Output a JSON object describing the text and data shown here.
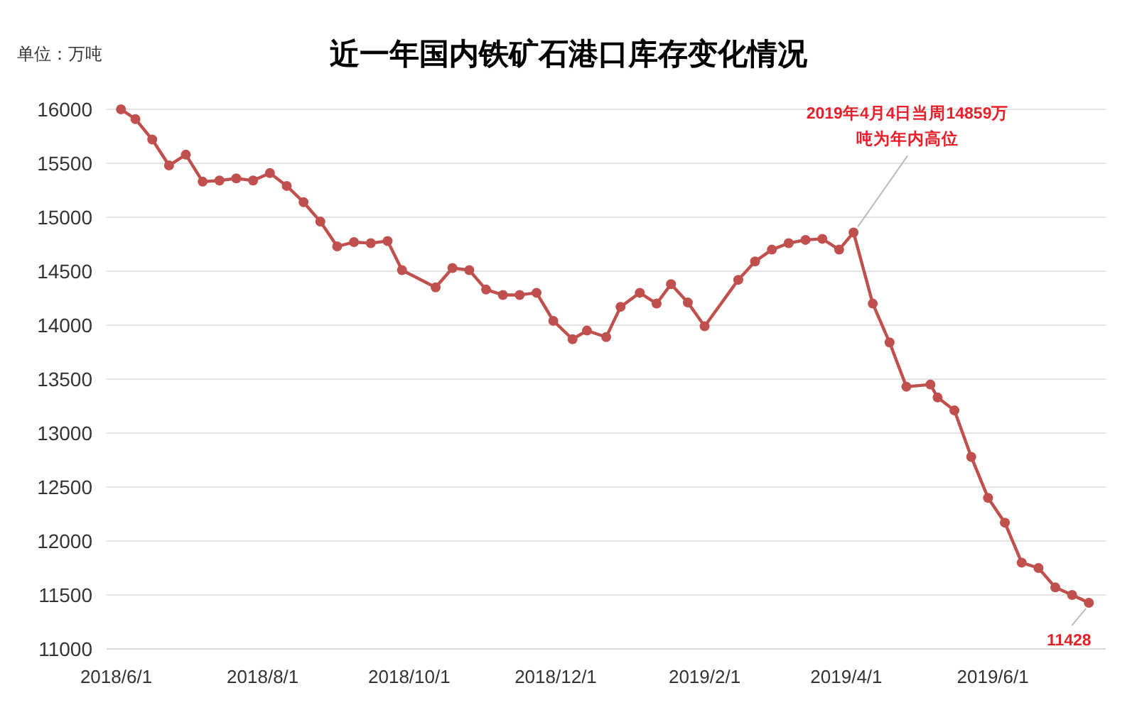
{
  "chart_data": {
    "type": "line",
    "title": "近一年国内铁矿石港口库存变化情况",
    "ylabel": "单位：万吨",
    "x": [
      "2018-06-03",
      "2018-06-09",
      "2018-06-16",
      "2018-06-23",
      "2018-06-30",
      "2018-07-07",
      "2018-07-14",
      "2018-07-21",
      "2018-07-28",
      "2018-08-04",
      "2018-08-11",
      "2018-08-18",
      "2018-08-25",
      "2018-09-01",
      "2018-09-08",
      "2018-09-15",
      "2018-09-22",
      "2018-09-28",
      "2018-10-12",
      "2018-10-19",
      "2018-10-26",
      "2018-11-02",
      "2018-11-09",
      "2018-11-16",
      "2018-11-23",
      "2018-11-30",
      "2018-12-08",
      "2018-12-14",
      "2018-12-22",
      "2018-12-28",
      "2019-01-05",
      "2019-01-12",
      "2019-01-18",
      "2019-01-25",
      "2019-02-01",
      "2019-02-15",
      "2019-02-22",
      "2019-03-01",
      "2019-03-08",
      "2019-03-15",
      "2019-03-22",
      "2019-03-29",
      "2019-04-04",
      "2019-04-12",
      "2019-04-19",
      "2019-04-26",
      "2019-05-06",
      "2019-05-09",
      "2019-05-16",
      "2019-05-23",
      "2019-05-30",
      "2019-06-06",
      "2019-06-13",
      "2019-06-20",
      "2019-06-27",
      "2019-07-04",
      "2019-07-11"
    ],
    "series": [
      {
        "color": "#c0504d",
        "values": [
          16000,
          15910,
          15720,
          15480,
          15580,
          15330,
          15340,
          15360,
          15340,
          15410,
          15290,
          15140,
          14960,
          14730,
          14770,
          14760,
          14780,
          14510,
          14350,
          14530,
          14510,
          14330,
          14280,
          14280,
          14300,
          14040,
          13870,
          13950,
          13890,
          14170,
          14300,
          14200,
          14380,
          14210,
          13990,
          14420,
          14590,
          14700,
          14760,
          14790,
          14800,
          14700,
          14859,
          14200,
          13840,
          13430,
          13450,
          13330,
          13210,
          12780,
          12400,
          12170,
          11800,
          11750,
          11570,
          11500,
          11428
        ]
      }
    ],
    "xlim": [
      "2018-05-28",
      "2019-07-18"
    ],
    "xticks": [
      {
        "value": "2018-06-01",
        "label": "2018/6/1"
      },
      {
        "value": "2018-08-01",
        "label": "2018/8/1"
      },
      {
        "value": "2018-10-01",
        "label": "2018/10/1"
      },
      {
        "value": "2018-12-01",
        "label": "2018/12/1"
      },
      {
        "value": "2019-02-01",
        "label": "2019/2/1"
      },
      {
        "value": "2019-04-01",
        "label": "2019/4/1"
      },
      {
        "value": "2019-06-01",
        "label": "2019/6/1"
      }
    ],
    "ylim": [
      11000,
      16000
    ],
    "yticks": [
      11000,
      11500,
      12000,
      12500,
      13000,
      13500,
      14000,
      14500,
      15000,
      15500,
      16000
    ],
    "grid": "y",
    "marker": "circle",
    "line_style": "solid",
    "annotations": [
      {
        "text": "2019年4月4日当周14859万吨为年内高位",
        "x": "2019-04-04",
        "y": 14859
      },
      {
        "text": "11428",
        "x": "2019-07-11",
        "y": 11428
      }
    ]
  }
}
